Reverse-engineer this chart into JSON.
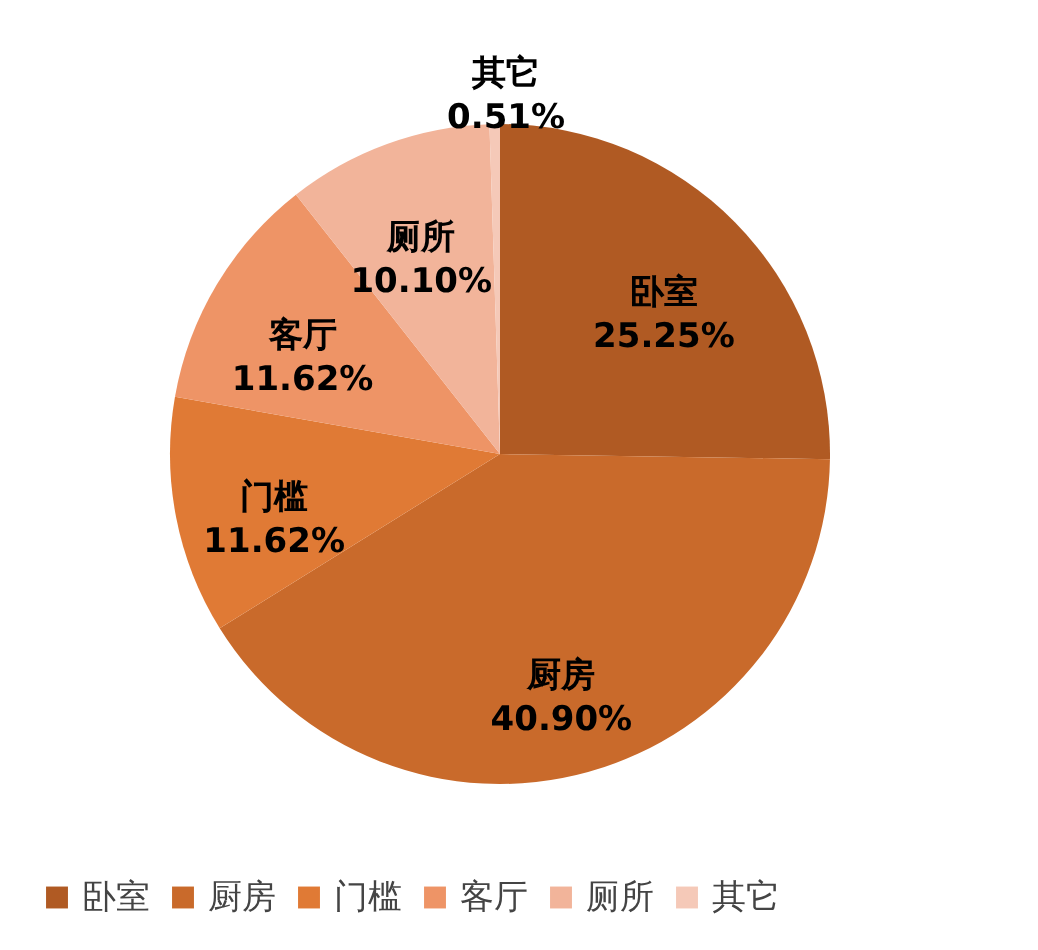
{
  "chart_data": {
    "type": "pie",
    "categories": [
      "卧室",
      "厨房",
      "门槛",
      "客厅",
      "厕所",
      "其它"
    ],
    "values": [
      25.25,
      40.9,
      11.62,
      11.62,
      10.1,
      0.51
    ],
    "colors": [
      "#b05a23",
      "#c96a2b",
      "#e07a35",
      "#ee9466",
      "#f2b49a",
      "#f5c9b8"
    ],
    "value_labels": [
      "25.25%",
      "40.90%",
      "11.62%",
      "11.62%",
      "10.10%",
      "0.51%"
    ],
    "legend": "bottom"
  }
}
